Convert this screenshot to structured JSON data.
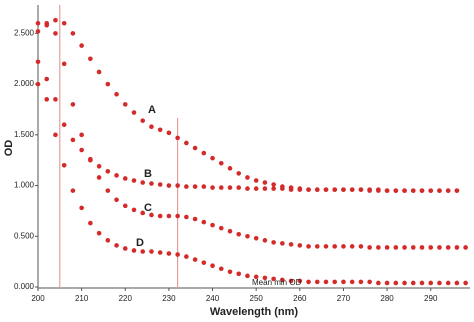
{
  "chart_data": {
    "type": "scatter",
    "x_label": "Wavelength (nm)",
    "y_label": "OD",
    "x": [
      200,
      202,
      204,
      206,
      208,
      210,
      212,
      214,
      216,
      218,
      220,
      222,
      224,
      226,
      228,
      230,
      232,
      234,
      236,
      238,
      240,
      242,
      244,
      246,
      248,
      250,
      252,
      254,
      256,
      258,
      260,
      262,
      264,
      266,
      268,
      270,
      272,
      274,
      276,
      278,
      280,
      282,
      284,
      286,
      288,
      290,
      292,
      294,
      296,
      298
    ],
    "color": "#d42a2a",
    "series": [
      {
        "name": "A",
        "values": [
          2.52,
          2.6,
          2.63,
          2.6,
          2.5,
          2.38,
          2.25,
          2.12,
          2.0,
          1.9,
          1.8,
          1.72,
          1.64,
          1.58,
          1.55,
          1.52,
          1.47,
          1.42,
          1.37,
          1.32,
          1.27,
          1.22,
          1.17,
          1.12,
          1.08,
          1.05,
          1.03,
          1.01,
          0.99,
          0.98,
          0.97,
          0.96,
          0.96,
          0.96,
          0.96,
          0.96,
          0.96,
          0.96,
          0.96,
          0.96,
          0.95,
          0.95,
          0.95,
          0.95,
          0.95,
          0.95,
          0.95,
          0.95,
          0.95,
          null
        ]
      },
      {
        "name": "B",
        "values": [
          2.22,
          2.05,
          1.85,
          1.6,
          1.45,
          1.35,
          1.26,
          1.19,
          1.14,
          1.1,
          1.07,
          1.05,
          1.03,
          1.02,
          1.01,
          1.0,
          1.0,
          0.99,
          0.99,
          0.99,
          0.98,
          0.98,
          0.98,
          0.98,
          0.97,
          0.97,
          0.97,
          0.97,
          0.97,
          0.96,
          0.96,
          0.96,
          0.96,
          0.96,
          0.96,
          0.96,
          0.96,
          0.96,
          0.95,
          0.95,
          0.95,
          0.95,
          0.95,
          0.95,
          0.95,
          0.95,
          0.95,
          0.95,
          0.95,
          null
        ]
      },
      {
        "name": "C",
        "values": [
          2.6,
          2.58,
          2.5,
          2.2,
          1.8,
          1.5,
          1.25,
          1.08,
          0.95,
          0.86,
          0.8,
          0.76,
          0.73,
          0.71,
          0.7,
          0.7,
          0.7,
          0.69,
          0.67,
          0.64,
          0.61,
          0.58,
          0.55,
          0.52,
          0.5,
          0.48,
          0.46,
          0.44,
          0.43,
          0.42,
          0.41,
          0.4,
          0.4,
          0.4,
          0.4,
          0.4,
          0.4,
          0.4,
          0.39,
          0.39,
          0.39,
          0.39,
          0.39,
          0.39,
          0.39,
          0.39,
          0.39,
          0.39,
          0.39,
          0.39
        ]
      },
      {
        "name": "D",
        "values": [
          2.0,
          1.85,
          1.5,
          1.2,
          0.95,
          0.78,
          0.63,
          0.53,
          0.46,
          0.41,
          0.38,
          0.36,
          0.35,
          0.35,
          0.34,
          0.33,
          0.32,
          0.3,
          0.27,
          0.24,
          0.21,
          0.18,
          0.15,
          0.13,
          0.11,
          0.1,
          0.09,
          0.08,
          0.07,
          0.06,
          0.06,
          0.05,
          0.05,
          0.05,
          0.05,
          0.05,
          0.05,
          0.05,
          0.05,
          0.04,
          0.04,
          0.04,
          0.04,
          0.04,
          0.04,
          0.04,
          0.04,
          0.04,
          0.04,
          0.04
        ]
      }
    ],
    "annotations": [
      "A",
      "B",
      "C",
      "D",
      "Mean min OD"
    ],
    "vlines": [
      205,
      232
    ],
    "vline_color": "#e08a8a",
    "xlim": [
      200,
      299
    ],
    "ylim": [
      0,
      2.78
    ],
    "xticks": [
      200,
      210,
      220,
      230,
      240,
      250,
      260,
      270,
      280,
      290
    ],
    "yticks": [
      {
        "value": 0,
        "label": "0.000"
      },
      {
        "value": 0.5,
        "label": "0.500"
      },
      {
        "value": 1,
        "label": "1.000"
      },
      {
        "value": 1.5,
        "label": "1.500"
      },
      {
        "value": 2,
        "label": "2.000"
      },
      {
        "value": 2.5,
        "label": "2.500"
      }
    ]
  }
}
